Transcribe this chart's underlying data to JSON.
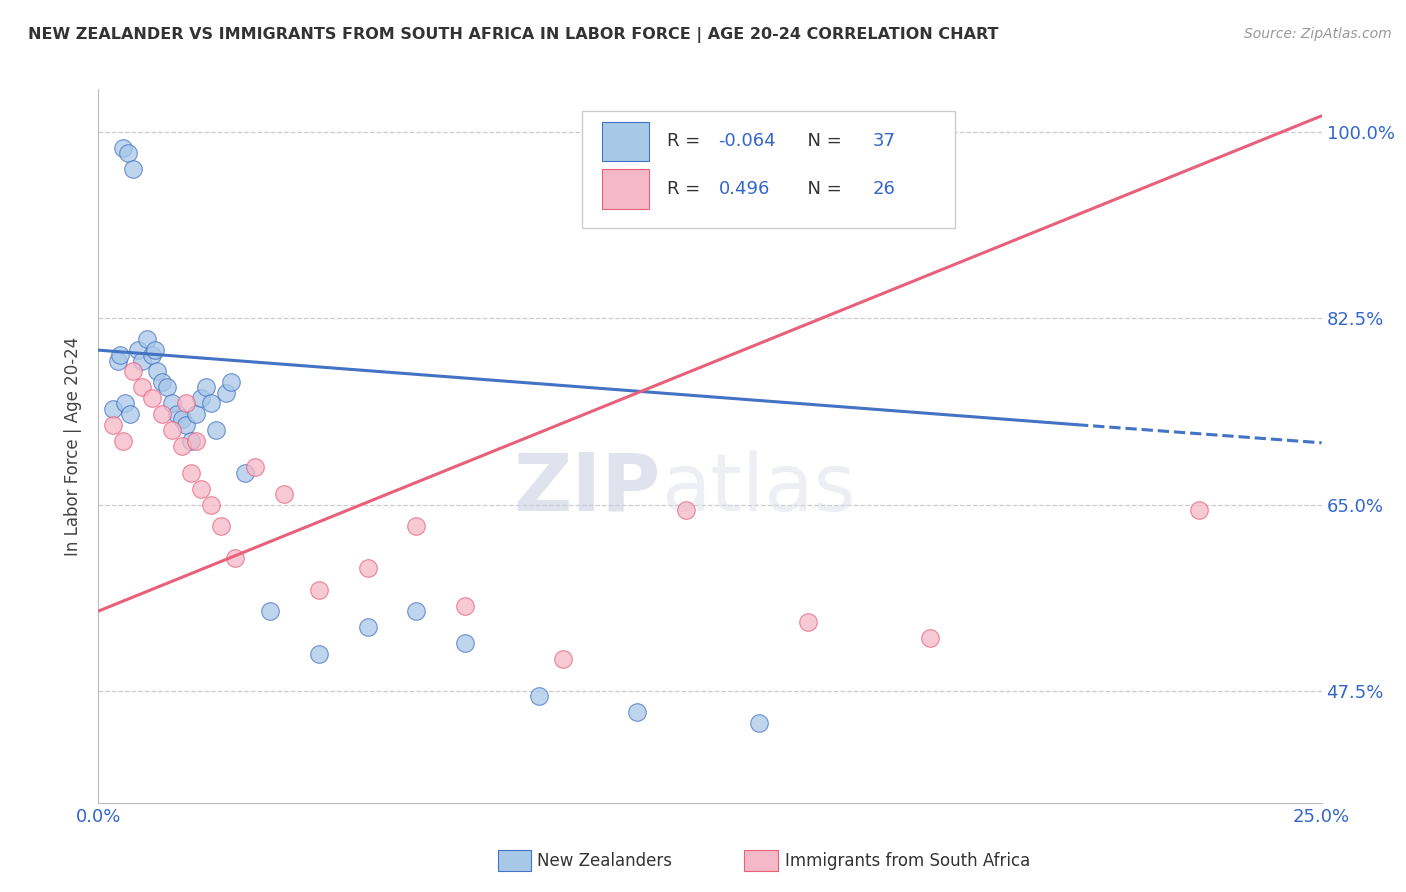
{
  "title": "NEW ZEALANDER VS IMMIGRANTS FROM SOUTH AFRICA IN LABOR FORCE | AGE 20-24 CORRELATION CHART",
  "source": "Source: ZipAtlas.com",
  "ylabel": "In Labor Force | Age 20-24",
  "xlim": [
    0.0,
    25.0
  ],
  "ylim": [
    37.0,
    104.0
  ],
  "yticks": [
    47.5,
    65.0,
    82.5,
    100.0
  ],
  "xticks": [
    0.0,
    5.0,
    10.0,
    15.0,
    20.0,
    25.0
  ],
  "xtick_labels": [
    "0.0%",
    "",
    "",
    "",
    "",
    "25.0%"
  ],
  "ytick_labels": [
    "47.5%",
    "65.0%",
    "82.5%",
    "100.0%"
  ],
  "blue_r": "-0.064",
  "blue_n": "37",
  "pink_r": "0.496",
  "pink_n": "26",
  "blue_color": "#a8c8e8",
  "pink_color": "#f5b8c8",
  "blue_line_color": "#4472c4",
  "pink_line_color": "#e8607a",
  "legend_label_blue": "New Zealanders",
  "legend_label_pink": "Immigrants from South Africa",
  "watermark_zip": "ZIP",
  "watermark_atlas": "atlas",
  "blue_x": [
    0.3,
    0.5,
    0.6,
    0.7,
    0.8,
    0.9,
    1.0,
    1.1,
    1.2,
    1.3,
    1.4,
    1.5,
    1.6,
    1.7,
    1.8,
    1.9,
    2.0,
    2.1,
    2.2,
    2.3,
    2.4,
    2.6,
    2.7,
    3.0,
    3.5,
    4.5,
    5.5,
    6.5,
    7.5,
    9.0,
    11.0,
    13.5,
    0.4,
    0.45,
    0.55,
    0.65,
    1.15
  ],
  "blue_y": [
    74.0,
    98.5,
    98.0,
    96.5,
    79.5,
    78.5,
    80.5,
    79.0,
    77.5,
    76.5,
    76.0,
    74.5,
    73.5,
    73.0,
    72.5,
    71.0,
    73.5,
    75.0,
    76.0,
    74.5,
    72.0,
    75.5,
    76.5,
    68.0,
    55.0,
    51.0,
    53.5,
    55.0,
    52.0,
    47.0,
    45.5,
    44.5,
    78.5,
    79.0,
    74.5,
    73.5,
    79.5
  ],
  "pink_x": [
    0.3,
    0.5,
    0.7,
    0.9,
    1.1,
    1.3,
    1.5,
    1.7,
    1.9,
    2.1,
    2.3,
    2.5,
    2.8,
    3.2,
    3.8,
    4.5,
    5.5,
    6.5,
    7.5,
    9.5,
    12.0,
    14.5,
    17.0,
    22.5,
    1.8,
    2.0
  ],
  "pink_y": [
    72.5,
    71.0,
    77.5,
    76.0,
    75.0,
    73.5,
    72.0,
    70.5,
    68.0,
    66.5,
    65.0,
    63.0,
    60.0,
    68.5,
    66.0,
    57.0,
    59.0,
    63.0,
    55.5,
    50.5,
    64.5,
    54.0,
    52.5,
    64.5,
    74.5,
    71.0
  ],
  "blue_line_x0": 0.0,
  "blue_line_y0": 79.5,
  "blue_line_x1": 20.0,
  "blue_line_y1": 72.5,
  "blue_dash_x0": 20.0,
  "blue_dash_y0": 72.5,
  "blue_dash_x1": 25.0,
  "blue_dash_y1": 70.8,
  "pink_line_x0": 0.0,
  "pink_line_y0": 55.0,
  "pink_line_x1": 25.0,
  "pink_line_y1": 101.5
}
